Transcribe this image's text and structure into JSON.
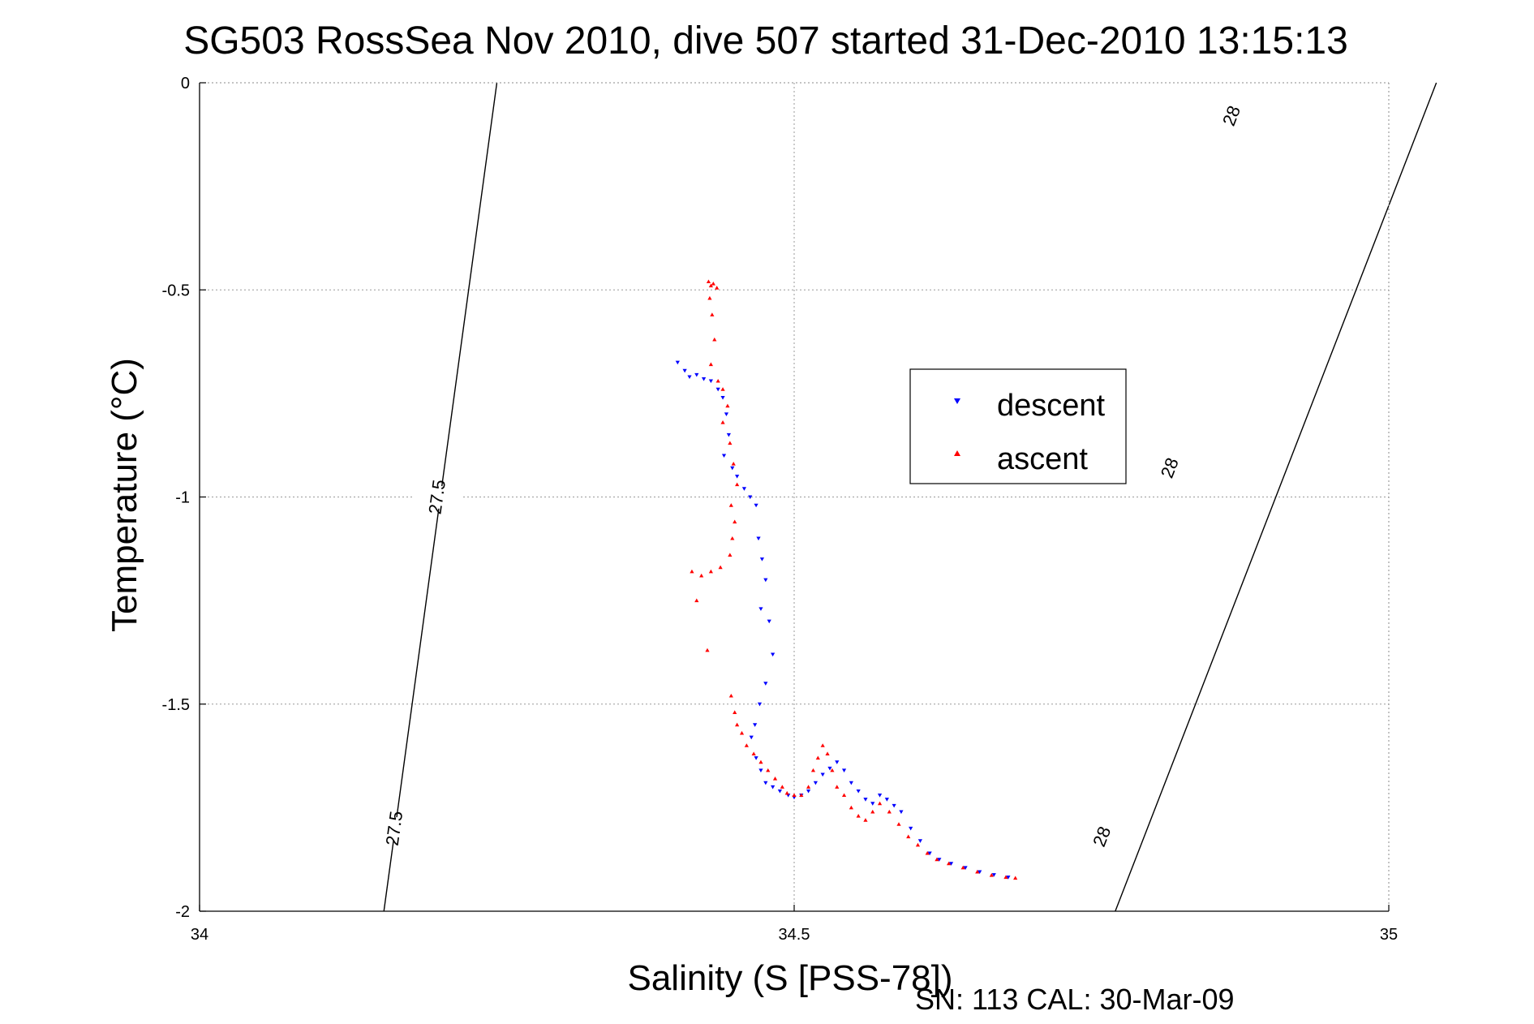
{
  "chart_data": {
    "type": "scatter",
    "title": "SG503 RossSea Nov 2010, dive 507 started 31-Dec-2010 13:15:13",
    "xlabel": "Salinity (S [PSS-78])",
    "ylabel": "Temperature (°C)",
    "xlim": [
      34,
      35
    ],
    "ylim": [
      -2,
      0
    ],
    "xticks": [
      34,
      34.5,
      35
    ],
    "xtick_labels": [
      "34",
      "34.5",
      "35"
    ],
    "yticks": [
      0,
      -0.5,
      -1,
      -1.5,
      -2
    ],
    "ytick_labels": [
      "0",
      "-0.5",
      "-1",
      "-1.5",
      "-2"
    ],
    "grid": true,
    "legend_position": "upper-right inside plot",
    "footer": "SN: 113  CAL: 30-Mar-09",
    "contours": [
      {
        "label": "27.5",
        "points": [
          [
            34.25,
            0
          ],
          [
            34.155,
            -2
          ]
        ],
        "labels_at": [
          [
            34.2,
            -1
          ],
          [
            34.164,
            -1.8
          ]
        ]
      },
      {
        "label": "28",
        "points": [
          [
            35.04,
            0
          ],
          [
            34.77,
            -2
          ]
        ],
        "labels_at": [
          [
            34.868,
            -0.08
          ],
          [
            34.816,
            -0.93
          ],
          [
            34.759,
            -1.82
          ]
        ]
      }
    ],
    "series": [
      {
        "name": "descent",
        "color": "#0000ff",
        "marker": "triangle-down",
        "points": [
          [
            34.402,
            -0.675
          ],
          [
            34.408,
            -0.695
          ],
          [
            34.412,
            -0.71
          ],
          [
            34.418,
            -0.705
          ],
          [
            34.424,
            -0.715
          ],
          [
            34.43,
            -0.72
          ],
          [
            34.436,
            -0.74
          ],
          [
            34.44,
            -0.76
          ],
          [
            34.443,
            -0.8
          ],
          [
            34.445,
            -0.85
          ],
          [
            34.441,
            -0.9
          ],
          [
            34.448,
            -0.93
          ],
          [
            34.452,
            -0.95
          ],
          [
            34.458,
            -0.98
          ],
          [
            34.463,
            -1.0
          ],
          [
            34.468,
            -1.02
          ],
          [
            34.47,
            -1.1
          ],
          [
            34.473,
            -1.15
          ],
          [
            34.476,
            -1.2
          ],
          [
            34.472,
            -1.27
          ],
          [
            34.479,
            -1.3
          ],
          [
            34.482,
            -1.38
          ],
          [
            34.476,
            -1.45
          ],
          [
            34.471,
            -1.5
          ],
          [
            34.467,
            -1.55
          ],
          [
            34.464,
            -1.58
          ],
          [
            34.468,
            -1.63
          ],
          [
            34.472,
            -1.66
          ],
          [
            34.476,
            -1.69
          ],
          [
            34.482,
            -1.7
          ],
          [
            34.488,
            -1.71
          ],
          [
            34.495,
            -1.72
          ],
          [
            34.5,
            -1.725
          ],
          [
            34.506,
            -1.72
          ],
          [
            34.512,
            -1.71
          ],
          [
            34.518,
            -1.69
          ],
          [
            34.524,
            -1.67
          ],
          [
            34.53,
            -1.655
          ],
          [
            34.536,
            -1.64
          ],
          [
            34.542,
            -1.66
          ],
          [
            34.548,
            -1.69
          ],
          [
            34.554,
            -1.71
          ],
          [
            34.56,
            -1.73
          ],
          [
            34.566,
            -1.74
          ],
          [
            34.572,
            -1.72
          ],
          [
            34.578,
            -1.73
          ],
          [
            34.584,
            -1.745
          ],
          [
            34.59,
            -1.76
          ],
          [
            34.598,
            -1.8
          ],
          [
            34.606,
            -1.83
          ],
          [
            34.614,
            -1.86
          ],
          [
            34.622,
            -1.875
          ],
          [
            34.632,
            -1.885
          ],
          [
            34.644,
            -1.895
          ],
          [
            34.656,
            -1.905
          ],
          [
            34.668,
            -1.912
          ],
          [
            34.68,
            -1.918
          ]
        ]
      },
      {
        "name": "ascent",
        "color": "#ff0000",
        "marker": "triangle-up",
        "points": [
          [
            34.428,
            -0.48
          ],
          [
            34.43,
            -0.49
          ],
          [
            34.432,
            -0.485
          ],
          [
            34.435,
            -0.495
          ],
          [
            34.429,
            -0.52
          ],
          [
            34.431,
            -0.56
          ],
          [
            34.433,
            -0.62
          ],
          [
            34.43,
            -0.68
          ],
          [
            34.436,
            -0.72
          ],
          [
            34.44,
            -0.74
          ],
          [
            34.444,
            -0.78
          ],
          [
            34.44,
            -0.82
          ],
          [
            34.446,
            -0.87
          ],
          [
            34.449,
            -0.92
          ],
          [
            34.452,
            -0.97
          ],
          [
            34.447,
            -1.02
          ],
          [
            34.45,
            -1.06
          ],
          [
            34.448,
            -1.1
          ],
          [
            34.446,
            -1.14
          ],
          [
            34.438,
            -1.17
          ],
          [
            34.43,
            -1.18
          ],
          [
            34.422,
            -1.19
          ],
          [
            34.414,
            -1.18
          ],
          [
            34.418,
            -1.25
          ],
          [
            34.427,
            -1.37
          ],
          [
            34.447,
            -1.48
          ],
          [
            34.45,
            -1.52
          ],
          [
            34.452,
            -1.55
          ],
          [
            34.456,
            -1.57
          ],
          [
            34.46,
            -1.6
          ],
          [
            34.466,
            -1.62
          ],
          [
            34.472,
            -1.64
          ],
          [
            34.478,
            -1.66
          ],
          [
            34.484,
            -1.68
          ],
          [
            34.49,
            -1.7
          ],
          [
            34.494,
            -1.715
          ],
          [
            34.5,
            -1.72
          ],
          [
            34.506,
            -1.72
          ],
          [
            34.512,
            -1.7
          ],
          [
            34.516,
            -1.66
          ],
          [
            34.52,
            -1.63
          ],
          [
            34.524,
            -1.6
          ],
          [
            34.528,
            -1.62
          ],
          [
            34.532,
            -1.66
          ],
          [
            34.536,
            -1.7
          ],
          [
            34.542,
            -1.72
          ],
          [
            34.548,
            -1.75
          ],
          [
            34.554,
            -1.77
          ],
          [
            34.56,
            -1.78
          ],
          [
            34.566,
            -1.76
          ],
          [
            34.572,
            -1.74
          ],
          [
            34.58,
            -1.76
          ],
          [
            34.588,
            -1.79
          ],
          [
            34.596,
            -1.82
          ],
          [
            34.604,
            -1.84
          ],
          [
            34.612,
            -1.86
          ],
          [
            34.62,
            -1.875
          ],
          [
            34.63,
            -1.885
          ],
          [
            34.642,
            -1.895
          ],
          [
            34.654,
            -1.905
          ],
          [
            34.666,
            -1.913
          ],
          [
            34.678,
            -1.918
          ],
          [
            34.686,
            -1.92
          ]
        ]
      }
    ]
  }
}
